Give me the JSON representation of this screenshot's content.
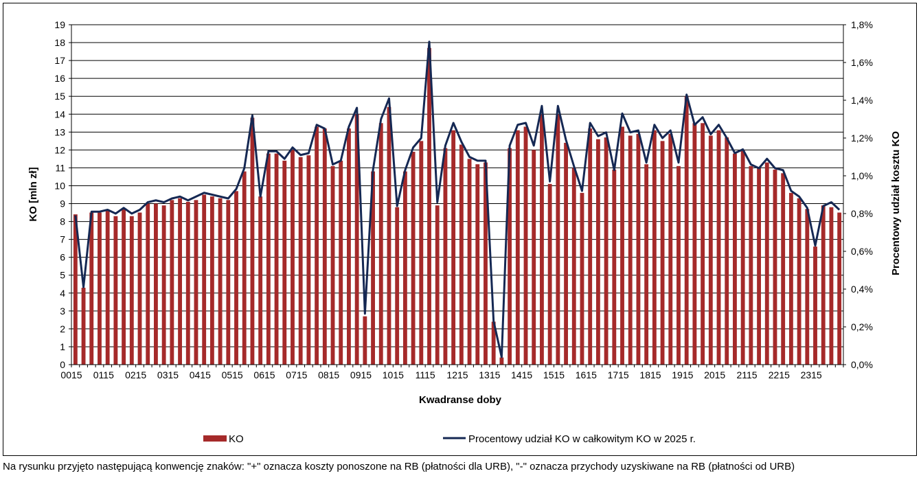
{
  "chart_data": {
    "type": "bar",
    "title": "",
    "xlabel": "Kwadranse doby",
    "ylabel_left": "KO [mln zł]",
    "ylabel_right": "Procentowy udział kosztu KO",
    "y_left_range": [
      0,
      19
    ],
    "y_left_ticks": [
      "0",
      "1",
      "2",
      "3",
      "4",
      "5",
      "6",
      "7",
      "8",
      "9",
      "10",
      "11",
      "12",
      "13",
      "14",
      "15",
      "16",
      "17",
      "18",
      "19"
    ],
    "y_right_range": [
      0,
      1.8
    ],
    "y_right_ticks": [
      "0,0%",
      "0,2%",
      "0,4%",
      "0,6%",
      "0,8%",
      "1,0%",
      "1,2%",
      "1,4%",
      "1,6%",
      "1,8%"
    ],
    "x_tick_labels": [
      "0015",
      "0115",
      "0215",
      "0315",
      "0415",
      "0515",
      "0615",
      "0715",
      "0815",
      "0915",
      "1015",
      "1115",
      "1215",
      "1315",
      "1415",
      "1515",
      "1615",
      "1715",
      "1815",
      "1915",
      "2015",
      "2115",
      "2215",
      "2315"
    ],
    "grid": "horizontal",
    "legend_position": "bottom",
    "series": [
      {
        "name": "KO",
        "type": "bar",
        "axis": "left",
        "color": "#a52a2a",
        "values": [
          8.4,
          4.3,
          8.5,
          8.5,
          8.6,
          8.3,
          8.7,
          8.3,
          8.5,
          9.0,
          9.0,
          8.9,
          9.2,
          9.3,
          9.1,
          9.2,
          9.5,
          9.4,
          9.3,
          9.2,
          9.7,
          10.8,
          13.8,
          9.4,
          11.8,
          11.8,
          11.4,
          12.0,
          11.6,
          11.7,
          13.3,
          13.2,
          11.1,
          11.4,
          13.2,
          14.0,
          2.7,
          10.8,
          13.5,
          14.4,
          8.8,
          10.8,
          11.9,
          12.5,
          17.7,
          8.9,
          12.1,
          13.1,
          12.3,
          11.5,
          11.2,
          11.3,
          2.4,
          0.4,
          12.1,
          13.1,
          13.3,
          12.0,
          14.0,
          10.1,
          14.0,
          12.4,
          11.0,
          9.6,
          13.2,
          12.6,
          12.7,
          10.9,
          13.3,
          12.8,
          12.9,
          11.2,
          13.1,
          12.5,
          12.9,
          11.1,
          15.0,
          13.5,
          13.5,
          12.8,
          13.1,
          12.7,
          11.8,
          12.0,
          11.1,
          11.0,
          11.3,
          10.9,
          10.7,
          9.6,
          9.3,
          8.7,
          6.6,
          8.9,
          8.8,
          8.5
        ]
      },
      {
        "name": "Procentowy udział KO w całkowitym KO w 2025 r.",
        "type": "line",
        "axis": "right",
        "color": "#152853",
        "values": [
          0.79,
          0.41,
          0.81,
          0.81,
          0.82,
          0.8,
          0.83,
          0.8,
          0.82,
          0.86,
          0.87,
          0.86,
          0.88,
          0.89,
          0.87,
          0.89,
          0.91,
          0.9,
          0.89,
          0.88,
          0.93,
          1.04,
          1.32,
          0.89,
          1.13,
          1.13,
          1.09,
          1.15,
          1.11,
          1.12,
          1.27,
          1.25,
          1.06,
          1.08,
          1.26,
          1.36,
          0.27,
          1.03,
          1.3,
          1.41,
          0.84,
          1.03,
          1.15,
          1.2,
          1.71,
          0.86,
          1.16,
          1.28,
          1.18,
          1.1,
          1.08,
          1.08,
          0.23,
          0.04,
          1.16,
          1.27,
          1.28,
          1.16,
          1.37,
          0.97,
          1.37,
          1.19,
          1.05,
          0.92,
          1.28,
          1.21,
          1.23,
          1.03,
          1.33,
          1.23,
          1.24,
          1.07,
          1.27,
          1.2,
          1.24,
          1.07,
          1.43,
          1.27,
          1.31,
          1.22,
          1.27,
          1.2,
          1.12,
          1.14,
          1.06,
          1.04,
          1.09,
          1.04,
          1.03,
          0.92,
          0.89,
          0.83,
          0.63,
          0.84,
          0.86,
          0.82
        ]
      }
    ]
  },
  "footnote": "Na rysunku przyjęto następującą konwencję znaków: \"+\" oznacza koszty ponoszone na RB (płatności dla URB), \"-\" oznacza przychody uzyskiwane na RB (płatności od URB)"
}
